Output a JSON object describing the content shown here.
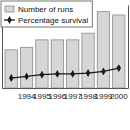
{
  "chart_data": {
    "type": "bar",
    "categories": [
      null,
      "1994",
      "1995",
      "1996",
      "1997",
      "1998",
      "1999",
      "2000"
    ],
    "series": [
      {
        "name": "Number of runs",
        "type": "bar",
        "color": "#d6d6d6",
        "values": [
          46,
          49,
          58,
          58,
          58,
          66,
          92,
          88
        ]
      },
      {
        "name": "Percentage survival",
        "type": "line",
        "color": "#1a1a1a",
        "marker": "diamond",
        "axis": "y2",
        "values": [
          12,
          14,
          16,
          17,
          17,
          18,
          20,
          24
        ]
      }
    ],
    "ylim": [
      0,
      100
    ],
    "yticks": [],
    "y2lim": [
      0,
      100
    ],
    "y2ticks": [],
    "tick_labels": "x",
    "legend": "top-left",
    "grid": false
  }
}
